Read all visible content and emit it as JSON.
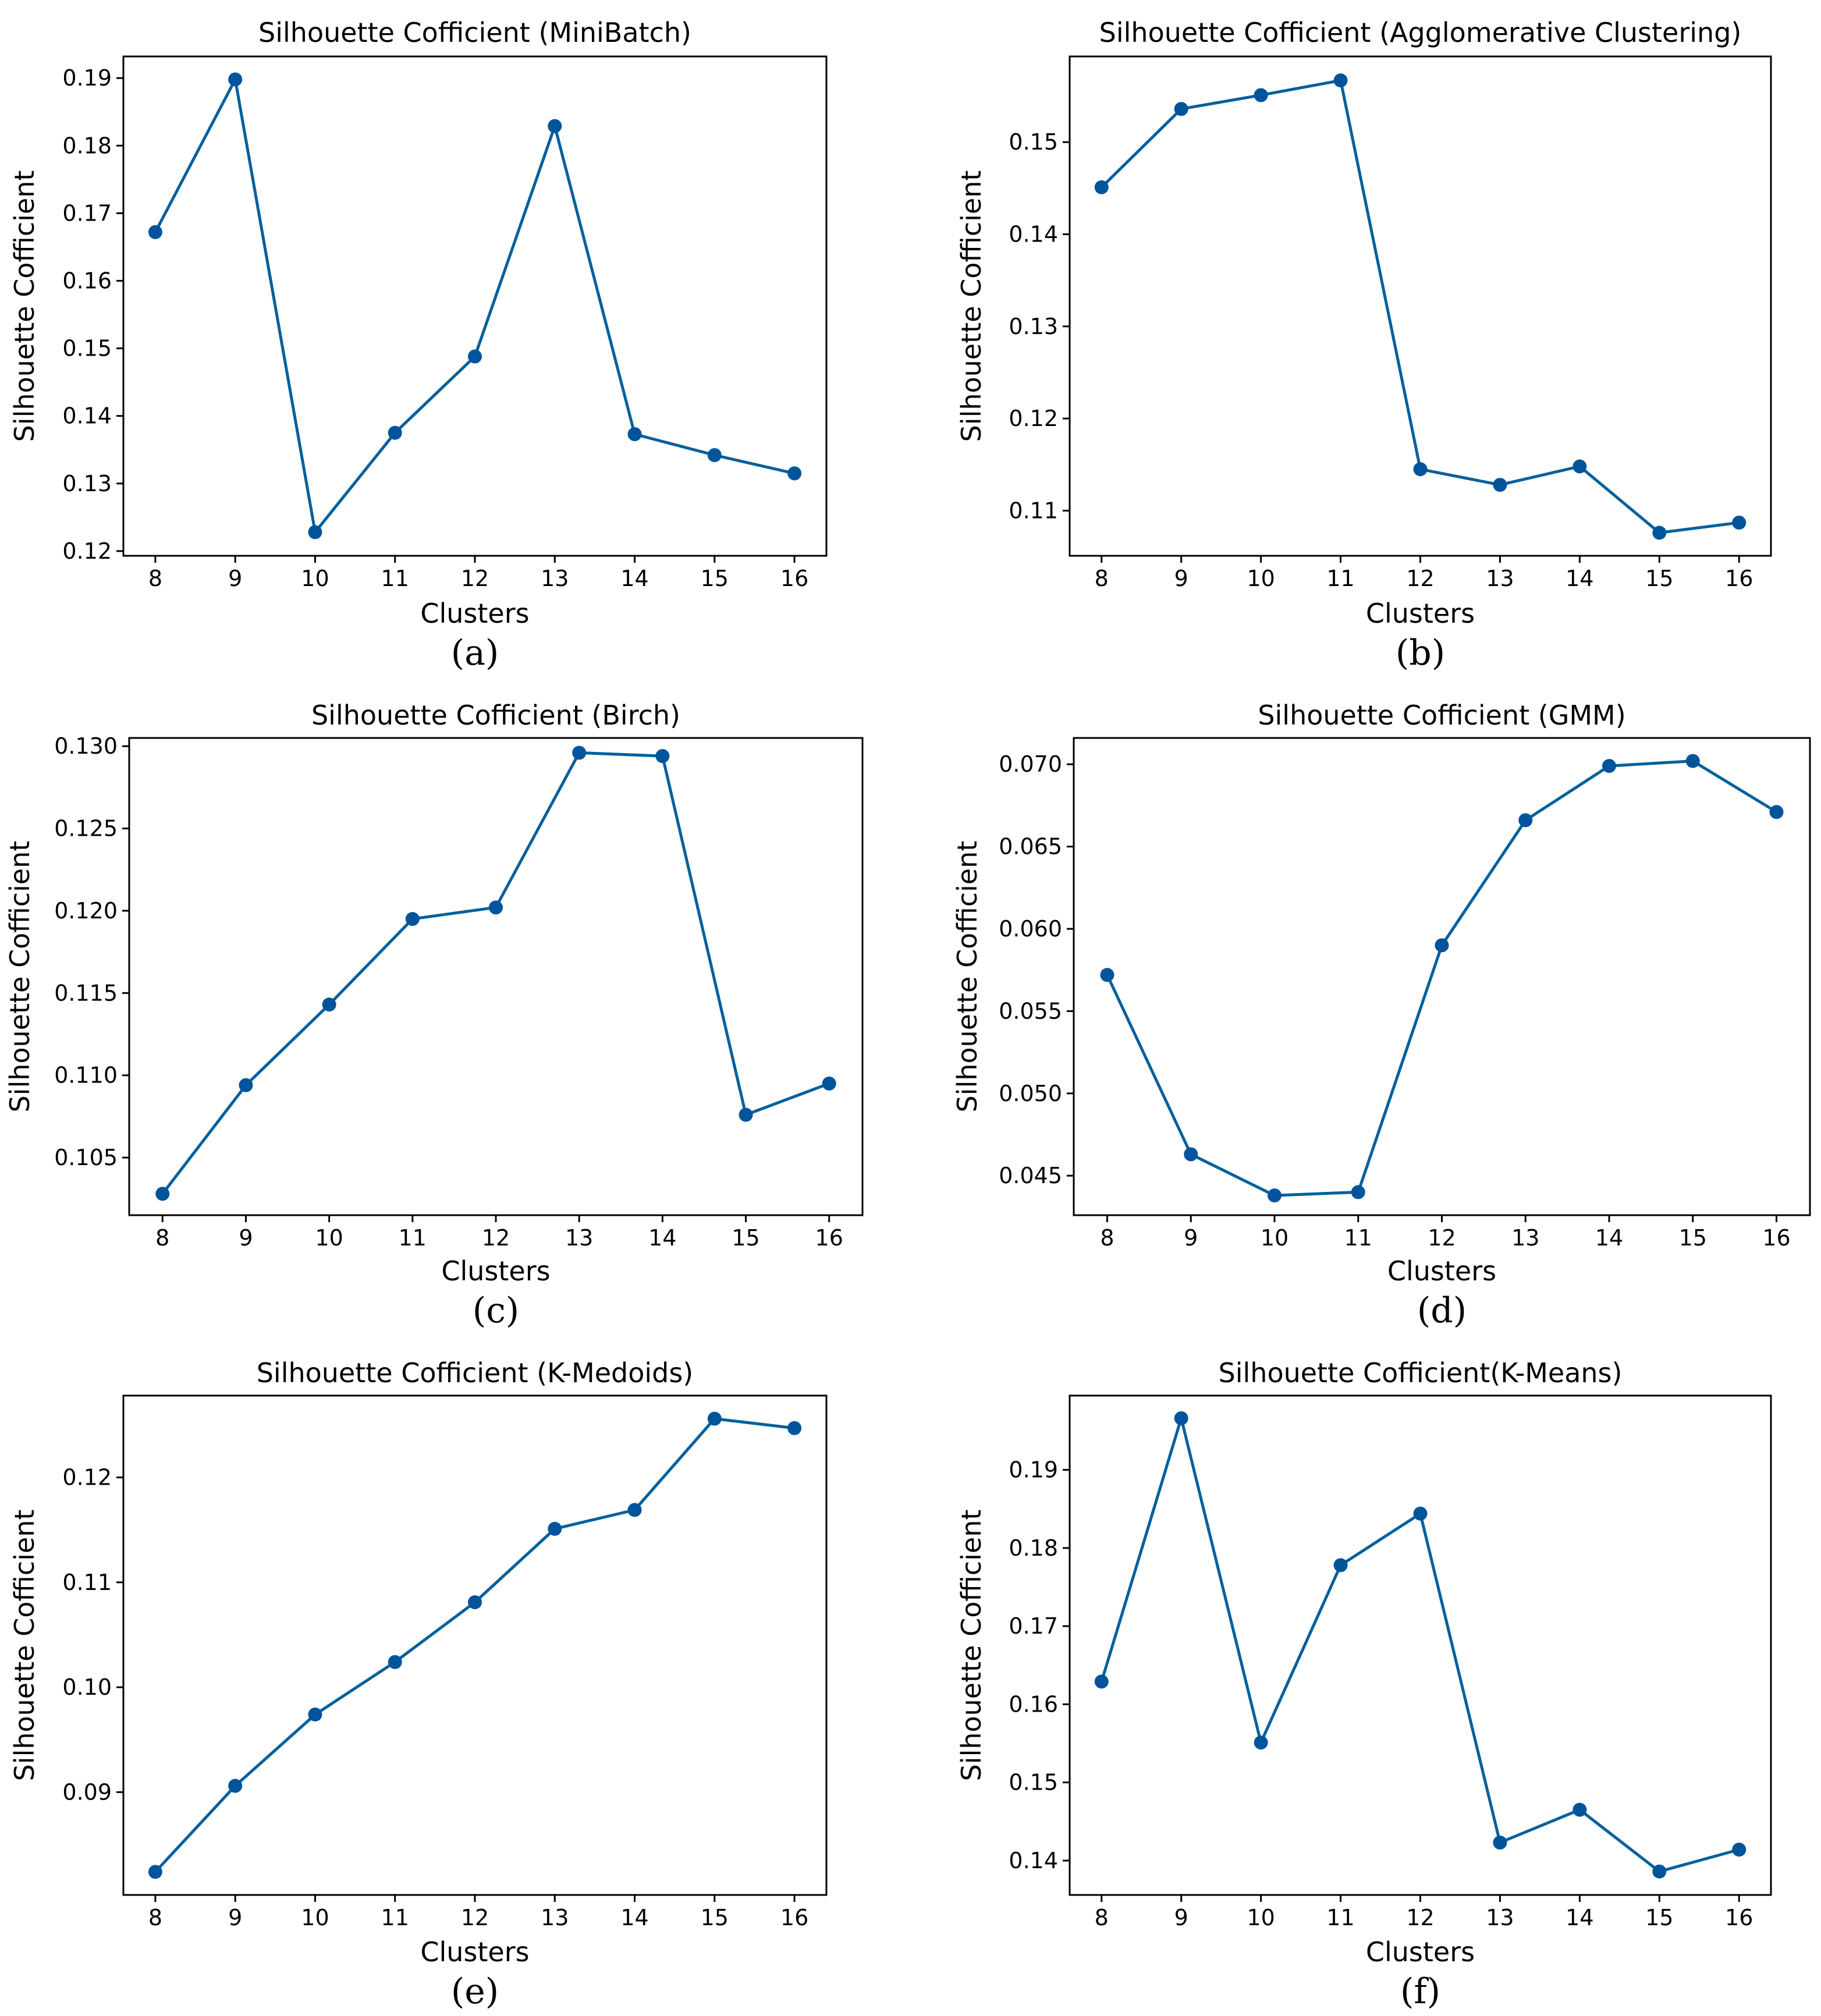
{
  "colors": {
    "line": "#00609c",
    "marker": "#00549b"
  },
  "chart_data": [
    {
      "type": "line",
      "panel": "(a)",
      "title": "Silhouette Cofficient (MiniBatch)",
      "xlabel": "Clusters",
      "ylabel": "Silhouette Cofficient",
      "x": [
        8,
        9,
        10,
        11,
        12,
        13,
        14,
        15,
        16
      ],
      "y": [
        0.1672,
        0.1898,
        0.1228,
        0.1375,
        0.1488,
        0.1829,
        0.1373,
        0.1342,
        0.1315
      ],
      "xlim": [
        7.6,
        16.4
      ],
      "ylim": [
        0.1193,
        0.1932
      ],
      "xticks": [
        "8",
        "9",
        "10",
        "11",
        "12",
        "13",
        "14",
        "15",
        "16"
      ],
      "yticks": [
        "0.12",
        "0.13",
        "0.14",
        "0.15",
        "0.16",
        "0.17",
        "0.18",
        "0.19"
      ],
      "ytick_values": [
        0.12,
        0.13,
        0.14,
        0.15,
        0.16,
        0.17,
        0.18,
        0.19
      ],
      "grid": false,
      "legend": "none"
    },
    {
      "type": "line",
      "panel": "(b)",
      "title": "Silhouette Cofficient (Agglomerative Clustering)",
      "xlabel": "Clusters",
      "ylabel": "Silhouette Cofficient",
      "x": [
        8,
        9,
        10,
        11,
        12,
        13,
        14,
        15,
        16
      ],
      "y": [
        0.1451,
        0.1536,
        0.1551,
        0.1567,
        0.1145,
        0.1128,
        0.1148,
        0.1076,
        0.1087
      ],
      "xlim": [
        7.6,
        16.4
      ],
      "ylim": [
        0.1051,
        0.1593
      ],
      "xticks": [
        "8",
        "9",
        "10",
        "11",
        "12",
        "13",
        "14",
        "15",
        "16"
      ],
      "yticks": [
        "0.11",
        "0.12",
        "0.13",
        "0.14",
        "0.15"
      ],
      "ytick_values": [
        0.11,
        0.12,
        0.13,
        0.14,
        0.15
      ],
      "grid": false,
      "legend": "none"
    },
    {
      "type": "line",
      "panel": "(c)",
      "title": "Silhouette Cofficient (Birch)",
      "xlabel": "Clusters",
      "ylabel": "Silhouette Cofficient",
      "x": [
        8,
        9,
        10,
        11,
        12,
        13,
        14,
        15,
        16
      ],
      "y": [
        0.1028,
        0.1094,
        0.1143,
        0.1195,
        0.1202,
        0.1296,
        0.1294,
        0.1076,
        0.1095
      ],
      "xlim": [
        7.6,
        16.4
      ],
      "ylim": [
        0.1015,
        0.1305
      ],
      "xticks": [
        "8",
        "9",
        "10",
        "11",
        "12",
        "13",
        "14",
        "15",
        "16"
      ],
      "yticks": [
        "0.105",
        "0.110",
        "0.115",
        "0.120",
        "0.125",
        "0.130"
      ],
      "ytick_values": [
        0.105,
        0.11,
        0.115,
        0.12,
        0.125,
        0.13
      ],
      "grid": false,
      "legend": "none"
    },
    {
      "type": "line",
      "panel": "(d)",
      "title": "Silhouette Cofficient (GMM)",
      "xlabel": "Clusters",
      "ylabel": "Silhouette Cofficient",
      "x": [
        8,
        9,
        10,
        11,
        12,
        13,
        14,
        15,
        16
      ],
      "y": [
        0.0572,
        0.0463,
        0.0438,
        0.044,
        0.059,
        0.0666,
        0.0699,
        0.0702,
        0.0671
      ],
      "xlim": [
        7.6,
        16.4
      ],
      "ylim": [
        0.0426,
        0.0716
      ],
      "xticks": [
        "8",
        "9",
        "10",
        "11",
        "12",
        "13",
        "14",
        "15",
        "16"
      ],
      "yticks": [
        "0.045",
        "0.050",
        "0.055",
        "0.060",
        "0.065",
        "0.070"
      ],
      "ytick_values": [
        0.045,
        0.05,
        0.055,
        0.06,
        0.065,
        0.07
      ],
      "grid": false,
      "legend": "none"
    },
    {
      "type": "line",
      "panel": "(e)",
      "title": "Silhouette Cofficient (K-Medoids)",
      "xlabel": "Clusters",
      "ylabel": "Silhouette Cofficient",
      "x": [
        8,
        9,
        10,
        11,
        12,
        13,
        14,
        15,
        16
      ],
      "y": [
        0.0824,
        0.0906,
        0.0974,
        0.1024,
        0.1081,
        0.1151,
        0.1169,
        0.1256,
        0.1247
      ],
      "xlim": [
        7.6,
        16.4
      ],
      "ylim": [
        0.0802,
        0.1278
      ],
      "xticks": [
        "8",
        "9",
        "10",
        "11",
        "12",
        "13",
        "14",
        "15",
        "16"
      ],
      "yticks": [
        "0.09",
        "0.10",
        "0.11",
        "0.12"
      ],
      "ytick_values": [
        0.09,
        0.1,
        0.11,
        0.12
      ],
      "grid": false,
      "legend": "none"
    },
    {
      "type": "line",
      "panel": "(f)",
      "title": "Silhouette Cofficient(K-Means)",
      "xlabel": "Clusters",
      "ylabel": "Silhouette Cofficient",
      "x": [
        8,
        9,
        10,
        11,
        12,
        13,
        14,
        15,
        16
      ],
      "y": [
        0.1629,
        0.1966,
        0.1551,
        0.1778,
        0.1844,
        0.1423,
        0.1465,
        0.1386,
        0.1414
      ],
      "xlim": [
        7.6,
        16.4
      ],
      "ylim": [
        0.1356,
        0.1995
      ],
      "xticks": [
        "8",
        "9",
        "10",
        "11",
        "12",
        "13",
        "14",
        "15",
        "16"
      ],
      "yticks": [
        "0.14",
        "0.15",
        "0.16",
        "0.17",
        "0.18",
        "0.19"
      ],
      "ytick_values": [
        0.14,
        0.15,
        0.16,
        0.17,
        0.18,
        0.19
      ],
      "grid": false,
      "legend": "none"
    }
  ]
}
